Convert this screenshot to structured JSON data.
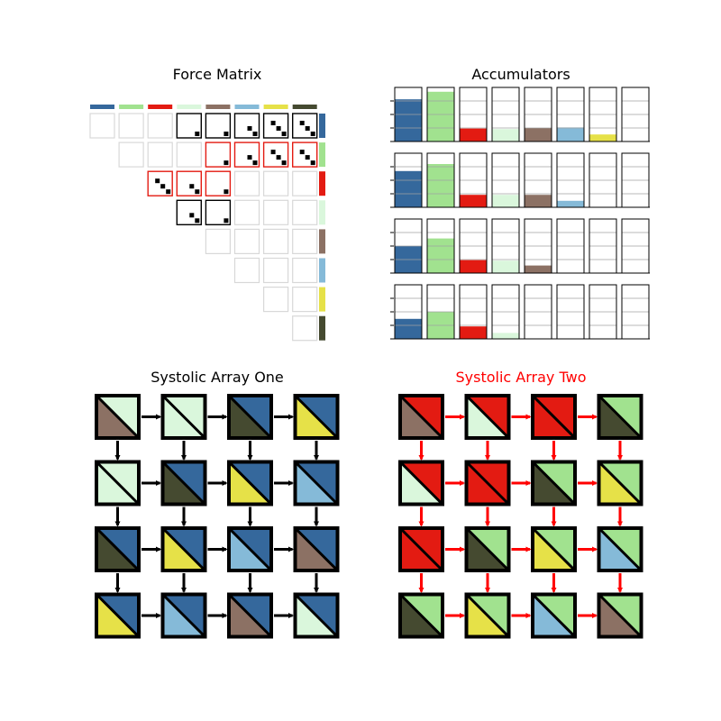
{
  "titles": {
    "force_matrix": "Force Matrix",
    "accumulators": "Accumulators",
    "systolic_one": "Systolic Array One",
    "systolic_two": "Systolic Array Two"
  },
  "colors": {
    "c0": "#35689c",
    "c1": "#a1e28f",
    "c2": "#e31b12",
    "c3": "#daf7dc",
    "c4": "#8c7164",
    "c5": "#85bad8",
    "c6": "#e6e148",
    "c7": "#454a30",
    "highlight_red": "#e31b12",
    "faded_border": "#d8d8d8"
  },
  "force_matrix": {
    "header_colors": [
      "c0",
      "c1",
      "c2",
      "c3",
      "c4",
      "c5",
      "c6",
      "c7"
    ],
    "cells_visible": [
      [
        1,
        1,
        1,
        1,
        1,
        1,
        1,
        1
      ],
      [
        0,
        1,
        1,
        1,
        1,
        1,
        1,
        1
      ],
      [
        0,
        0,
        1,
        1,
        1,
        1,
        1,
        1
      ],
      [
        0,
        0,
        0,
        1,
        1,
        1,
        1,
        1
      ],
      [
        0,
        0,
        0,
        0,
        1,
        1,
        1,
        1
      ],
      [
        0,
        0,
        0,
        0,
        0,
        1,
        1,
        1
      ],
      [
        0,
        0,
        0,
        0,
        0,
        0,
        1,
        1
      ],
      [
        0,
        0,
        0,
        0,
        0,
        0,
        0,
        1
      ]
    ],
    "cells_state": [
      [
        "f",
        "f",
        "f",
        "k",
        "k",
        "k",
        "k",
        "k"
      ],
      [
        "-",
        "f",
        "f",
        "f",
        "r",
        "r",
        "r",
        "r"
      ],
      [
        "-",
        "-",
        "r",
        "r",
        "r",
        "f",
        "f",
        "f"
      ],
      [
        "-",
        "-",
        "-",
        "k",
        "k",
        "f",
        "f",
        "f"
      ],
      [
        "-",
        "-",
        "-",
        "-",
        "f",
        "f",
        "f",
        "f"
      ],
      [
        "-",
        "-",
        "-",
        "-",
        "-",
        "f",
        "f",
        "f"
      ],
      [
        "-",
        "-",
        "-",
        "-",
        "-",
        "-",
        "f",
        "f"
      ],
      [
        "-",
        "-",
        "-",
        "-",
        "-",
        "-",
        "-",
        "f"
      ]
    ],
    "cells_dots": [
      [
        0,
        0,
        0,
        1,
        1,
        2,
        3,
        3
      ],
      [
        0,
        0,
        0,
        0,
        1,
        2,
        3,
        3
      ],
      [
        0,
        0,
        3,
        2,
        1,
        0,
        0,
        0
      ],
      [
        0,
        0,
        0,
        2,
        1,
        0,
        0,
        0
      ],
      [
        0,
        0,
        0,
        0,
        0,
        0,
        0,
        0
      ],
      [
        0,
        0,
        0,
        0,
        0,
        0,
        0,
        0
      ],
      [
        0,
        0,
        0,
        0,
        0,
        0,
        0,
        0
      ],
      [
        0,
        0,
        0,
        0,
        0,
        0,
        0,
        0
      ]
    ]
  },
  "accumulators": {
    "bar_colors": [
      "c0",
      "c1",
      "c2",
      "c3",
      "c4",
      "c5",
      "c6",
      "c7"
    ],
    "levels": [
      [
        0.78,
        0.92,
        0.24,
        0.23,
        0.25,
        0.26,
        0.13,
        0.0
      ],
      [
        0.67,
        0.8,
        0.23,
        0.23,
        0.23,
        0.12,
        0.0,
        0.0
      ],
      [
        0.5,
        0.64,
        0.24,
        0.23,
        0.14,
        0.0,
        0.0,
        0.0
      ],
      [
        0.37,
        0.5,
        0.23,
        0.11,
        0.0,
        0.0,
        0.0,
        0.0
      ]
    ]
  },
  "systolic_one": {
    "title_color": "#000000",
    "arrow_color": "#000000",
    "cells": [
      [
        [
          "c3",
          "c4"
        ],
        [
          "c3",
          "c3"
        ],
        [
          "c0",
          "c7"
        ],
        [
          "c0",
          "c6"
        ]
      ],
      [
        [
          "c3",
          "c3"
        ],
        [
          "c0",
          "c7"
        ],
        [
          "c0",
          "c6"
        ],
        [
          "c0",
          "c5"
        ]
      ],
      [
        [
          "c0",
          "c7"
        ],
        [
          "c0",
          "c6"
        ],
        [
          "c0",
          "c5"
        ],
        [
          "c0",
          "c4"
        ]
      ],
      [
        [
          "c0",
          "c6"
        ],
        [
          "c0",
          "c5"
        ],
        [
          "c0",
          "c4"
        ],
        [
          "c0",
          "c3"
        ]
      ]
    ]
  },
  "systolic_two": {
    "title_color": "#ff0000",
    "arrow_color": "#ff0000",
    "cells": [
      [
        [
          "c2",
          "c4"
        ],
        [
          "c2",
          "c3"
        ],
        [
          "c2",
          "c2"
        ],
        [
          "c1",
          "c7"
        ]
      ],
      [
        [
          "c2",
          "c3"
        ],
        [
          "c2",
          "c2"
        ],
        [
          "c1",
          "c7"
        ],
        [
          "c1",
          "c6"
        ]
      ],
      [
        [
          "c2",
          "c2"
        ],
        [
          "c1",
          "c7"
        ],
        [
          "c1",
          "c6"
        ],
        [
          "c1",
          "c5"
        ]
      ],
      [
        [
          "c1",
          "c7"
        ],
        [
          "c1",
          "c6"
        ],
        [
          "c1",
          "c5"
        ],
        [
          "c1",
          "c4"
        ]
      ]
    ]
  }
}
